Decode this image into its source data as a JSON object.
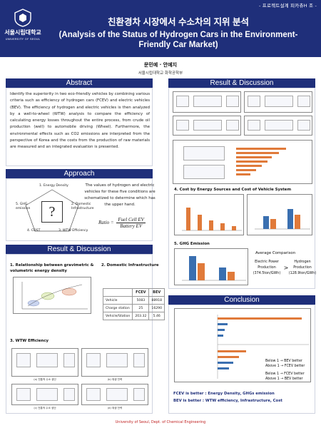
{
  "header": {
    "tag": "- 프로젝트설계 피카츄H 조 -",
    "logo_ko": "서울시립대학교",
    "logo_en": "UNIVERSITY OF SEOUL",
    "title_ko": "친환경차 시장에서 수소차의 지위 분석",
    "title_en_1": "(Analysis of the Status of Hydrogen Cars in the Environment-",
    "title_en_2": "Friendly Car Market)"
  },
  "authors": {
    "names": "문민예 · 안예지",
    "dept": "서울시립대학교 화학공학부"
  },
  "sections": {
    "abstract": "Abstract",
    "approach": "Approach",
    "result_left": "Result & Discussion",
    "result_right": "Result & Discussion",
    "conclusion": "Conclusion"
  },
  "abstract_text": "Identify the superiority in two eco-friendly vehicles by combining various criteria such as efficiency of hydrogen cars (FCEV) and electric vehicles (BEV). The efficiency of hydrogen and electric vehicles is then analyzed by a well-to-wheel (WTW) analysis to compare the efficiency of calculating energy losses throughout the entire process, from crude oil production (well) to automobile driving (Wheel). Furthermore, the environmental effects such as CO2 emissions are interpreted from the perspective of Korea and the costs from the production of raw materials are measured and an integrated evaluation is presented.",
  "approach": {
    "labels": [
      "1. Energy Density",
      "2. Domestic Infrastructure",
      "3. WTW Efficiency",
      "4. COST",
      "5. GHG emission"
    ],
    "center": "?",
    "description": "The values of hydrogen and electric vehicles for these five conditions are schematized to determine which has the upper hand.",
    "ratio_label": "Ratio =",
    "ratio_num": "Fuel Cell EV",
    "ratio_den": "Battery EV"
  },
  "result_left": {
    "item1": "1.  Relationship between gravimetric & volumetric energy density",
    "item2": "2.  Domestic Infrastructure",
    "item3": "3.  WTW Efficiency",
    "table": {
      "headers": [
        "",
        "FCEV",
        "BEV"
      ],
      "rows": [
        [
          "Vehicle",
          "5083",
          "88918"
        ],
        [
          "Charge station",
          "25",
          "16290"
        ],
        [
          "Vehicle/Station",
          "203.32",
          "5.46"
        ]
      ]
    },
    "wtw_captions": [
      "(a) 전통적 수소 생산",
      "(b) 재생 전력",
      "(c) 전통적 수소 생산",
      "(d) 재생 전력"
    ]
  },
  "result_right": {
    "item4": "4. Cost by Energy Sources and Cost of Vehicle System",
    "item5": "5. GHG Emission",
    "avg_title": "Average Comparison",
    "avg_left": [
      "Electric Power",
      "Production",
      "(374.5ton/GWh)"
    ],
    "avg_vs": ">",
    "avg_right": [
      "Hydrogen",
      "Production",
      "(128.9ton/GWh)"
    ]
  },
  "conclusion": {
    "legend_1a": "Below 1 → BEV  better",
    "legend_1b": "Above 1 → FCEV better",
    "legend_2a": "Below 1 → FCEV better",
    "legend_2b": "Above 1 → BEV  better",
    "line1": "FCEV is better : Energy Density, GHGs emission",
    "line2": "BEV is better : WTW efficiency, Infrastructure, Cost"
  },
  "footer": "University of Seoul, Dept. of Chemical Engineering",
  "colors": {
    "navy": "#1f2f7a",
    "accent_red": "#c02222"
  }
}
